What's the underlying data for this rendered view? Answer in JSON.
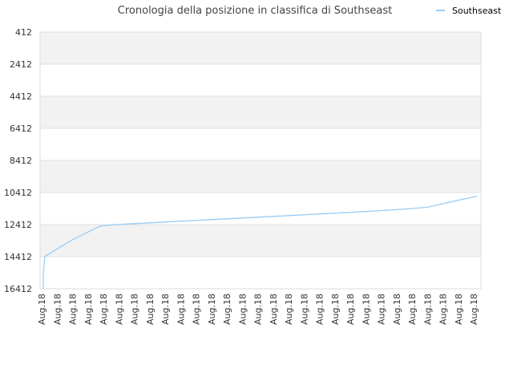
{
  "chart_data": {
    "type": "line",
    "title": "Cronologia della posizione in classifica di Southseast",
    "xlabel": "",
    "ylabel": "",
    "y_reversed": true,
    "ylim": [
      412,
      16412
    ],
    "yticks": [
      412,
      2412,
      4412,
      6412,
      8412,
      10412,
      12412,
      14412,
      16412
    ],
    "x_tick_labels": [
      "Aug.18",
      "Aug.18",
      "Aug.18",
      "Aug.18",
      "Aug.18",
      "Aug.18",
      "Aug.18",
      "Aug.18",
      "Aug.18",
      "Aug.18",
      "Aug.18",
      "Aug.18",
      "Aug.18",
      "Aug.18",
      "Aug.18",
      "Aug.18",
      "Aug.18",
      "Aug.18",
      "Aug.18",
      "Aug.18",
      "Aug.18",
      "Aug.18",
      "Aug.18",
      "Aug.18",
      "Aug.18",
      "Aug.18",
      "Aug.18",
      "Aug.18",
      "Aug.18"
    ],
    "legend_position": "top-right",
    "grid": true,
    "series": [
      {
        "name": "Southseast",
        "color": "#99ccf5",
        "points": [
          {
            "x": 0.1,
            "y": 16412
          },
          {
            "x": 0.1,
            "y": 15500
          },
          {
            "x": 0.2,
            "y": 14400
          },
          {
            "x": 2.0,
            "y": 13350
          },
          {
            "x": 3.8,
            "y": 12500
          },
          {
            "x": 5.0,
            "y": 12400
          },
          {
            "x": 8.0,
            "y": 12250
          },
          {
            "x": 11.0,
            "y": 12100
          },
          {
            "x": 14.0,
            "y": 11950
          },
          {
            "x": 17.0,
            "y": 11800
          },
          {
            "x": 20.0,
            "y": 11650
          },
          {
            "x": 23.0,
            "y": 11480
          },
          {
            "x": 25.0,
            "y": 11330
          },
          {
            "x": 26.5,
            "y": 11000
          },
          {
            "x": 28.2,
            "y": 10650
          }
        ]
      }
    ],
    "band_color": "#f2f2f2",
    "grid_color": "#e0e0e0"
  }
}
